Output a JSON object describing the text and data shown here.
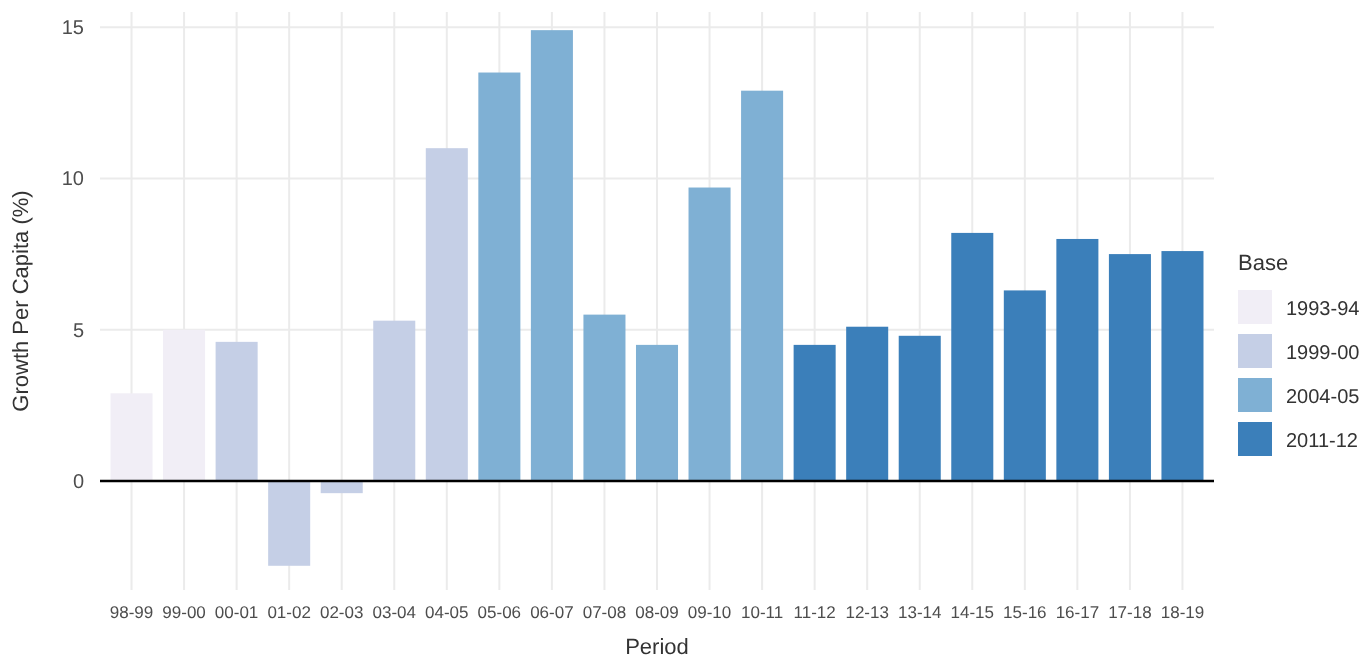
{
  "chart_data": {
    "type": "bar",
    "xlabel": "Period",
    "ylabel": "Growth Per Capita (%)",
    "legend_title": "Base",
    "legend": "right",
    "categories": [
      "98-99",
      "99-00",
      "00-01",
      "01-02",
      "02-03",
      "03-04",
      "04-05",
      "05-06",
      "06-07",
      "07-08",
      "08-09",
      "09-10",
      "10-11",
      "11-12",
      "12-13",
      "13-14",
      "14-15",
      "15-16",
      "16-17",
      "17-18",
      "18-19"
    ],
    "series": [
      {
        "name": "1993-94",
        "color": "#f1eef6",
        "values": [
          2.9,
          5.0,
          null,
          null,
          null,
          null,
          null,
          null,
          null,
          null,
          null,
          null,
          null,
          null,
          null,
          null,
          null,
          null,
          null,
          null,
          null
        ]
      },
      {
        "name": "1999-00",
        "color": "#c5cfe6",
        "values": [
          null,
          null,
          4.6,
          -2.8,
          -0.4,
          5.3,
          11.0,
          null,
          null,
          null,
          null,
          null,
          null,
          null,
          null,
          null,
          null,
          null,
          null,
          null,
          null
        ]
      },
      {
        "name": "2004-05",
        "color": "#7fb0d4",
        "values": [
          null,
          null,
          null,
          null,
          null,
          null,
          null,
          13.5,
          14.9,
          5.5,
          4.5,
          9.7,
          12.9,
          null,
          null,
          null,
          null,
          null,
          null,
          null,
          null
        ]
      },
      {
        "name": "2011-12",
        "color": "#3b7fba",
        "values": [
          null,
          null,
          null,
          null,
          null,
          null,
          null,
          null,
          null,
          null,
          null,
          null,
          null,
          4.5,
          5.1,
          4.8,
          8.2,
          6.3,
          8.0,
          7.5,
          7.6
        ]
      }
    ],
    "ylim": [
      -3.6,
      15.5
    ],
    "yticks": [
      0,
      5,
      10,
      15
    ],
    "grid": true,
    "ref_lines": [
      {
        "axis": "y",
        "value": 0,
        "color": "#000000"
      }
    ]
  }
}
